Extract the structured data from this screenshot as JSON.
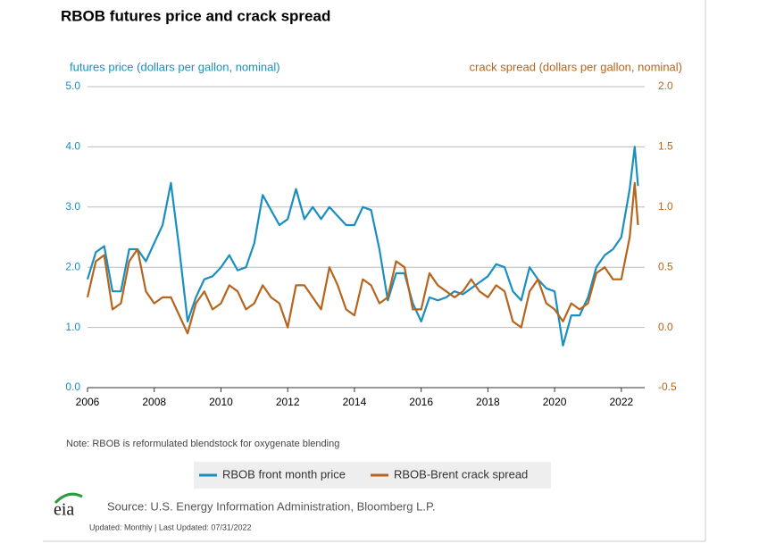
{
  "chart_data": {
    "type": "line",
    "title": "RBOB futures price and crack spread",
    "y_label": "futures price (dollars per gallon, nominal)",
    "y2_label": "crack spread (dollars per gallon, nominal)",
    "note": "Note: RBOB is reformulated blendstock for oxygenate blending",
    "source": "Source: U.S. Energy Information Administration, Bloomberg L.P.",
    "updated": "Updated: Monthly | Last Updated: 07/31/2022",
    "logo_text": "eia",
    "xlim": [
      2006,
      2022.7
    ],
    "xticks": [
      2006,
      2008,
      2010,
      2012,
      2014,
      2016,
      2018,
      2020,
      2022
    ],
    "ylim": [
      0,
      5
    ],
    "yticks": [
      {
        "value": 0,
        "label": "0.0"
      },
      {
        "value": 1,
        "label": "1.0"
      },
      {
        "value": 2,
        "label": "2.0"
      },
      {
        "value": 3,
        "label": "3.0"
      },
      {
        "value": 4,
        "label": "4.0"
      },
      {
        "value": 5,
        "label": "5.0"
      }
    ],
    "y2lim": [
      -0.5,
      2
    ],
    "y2ticks": [
      {
        "value": -0.5,
        "label": "-0.5"
      },
      {
        "value": 0,
        "label": "0.0"
      },
      {
        "value": 0.5,
        "label": "0.5"
      },
      {
        "value": 1,
        "label": "1.0"
      },
      {
        "value": 1.5,
        "label": "1.5"
      },
      {
        "value": 2,
        "label": "2.0"
      }
    ],
    "grid": true,
    "x": [
      2006,
      2006.25,
      2006.5,
      2006.75,
      2007,
      2007.25,
      2007.5,
      2007.75,
      2008,
      2008.25,
      2008.5,
      2008.75,
      2009,
      2009.25,
      2009.5,
      2009.75,
      2010,
      2010.25,
      2010.5,
      2010.75,
      2011,
      2011.25,
      2011.5,
      2011.75,
      2012,
      2012.25,
      2012.5,
      2012.75,
      2013,
      2013.25,
      2013.5,
      2013.75,
      2014,
      2014.25,
      2014.5,
      2014.75,
      2015,
      2015.25,
      2015.5,
      2015.75,
      2016,
      2016.25,
      2016.5,
      2016.75,
      2017,
      2017.25,
      2017.5,
      2017.75,
      2018,
      2018.25,
      2018.5,
      2018.75,
      2019,
      2019.25,
      2019.5,
      2019.75,
      2020,
      2020.25,
      2020.5,
      2020.75,
      2021,
      2021.25,
      2021.5,
      2021.75,
      2022,
      2022.25,
      2022.4,
      2022.5
    ],
    "series": [
      {
        "name": "RBOB front month price",
        "color": "#1a8fbf",
        "axis": "y",
        "values": [
          1.8,
          2.25,
          2.35,
          1.6,
          1.6,
          2.3,
          2.3,
          2.1,
          2.4,
          2.7,
          3.4,
          2.3,
          1.1,
          1.5,
          1.8,
          1.85,
          2.0,
          2.2,
          1.95,
          2.0,
          2.4,
          3.2,
          2.95,
          2.7,
          2.8,
          3.3,
          2.8,
          3.0,
          2.8,
          3.0,
          2.85,
          2.7,
          2.7,
          3.0,
          2.95,
          2.3,
          1.45,
          1.9,
          1.9,
          1.4,
          1.1,
          1.5,
          1.45,
          1.5,
          1.6,
          1.55,
          1.65,
          1.75,
          1.85,
          2.05,
          2.0,
          1.6,
          1.45,
          2.0,
          1.8,
          1.65,
          1.6,
          0.7,
          1.2,
          1.2,
          1.5,
          2.0,
          2.2,
          2.3,
          2.5,
          3.3,
          4.0,
          3.35
        ]
      },
      {
        "name": "RBOB-Brent crack spread",
        "color": "#b5651d",
        "axis": "y2",
        "values": [
          0.25,
          0.55,
          0.6,
          0.15,
          0.2,
          0.55,
          0.65,
          0.3,
          0.2,
          0.25,
          0.25,
          0.1,
          -0.05,
          0.2,
          0.3,
          0.15,
          0.2,
          0.35,
          0.3,
          0.15,
          0.2,
          0.35,
          0.25,
          0.2,
          0.0,
          0.35,
          0.35,
          0.25,
          0.15,
          0.5,
          0.35,
          0.15,
          0.1,
          0.4,
          0.35,
          0.2,
          0.25,
          0.55,
          0.5,
          0.15,
          0.15,
          0.45,
          0.35,
          0.3,
          0.25,
          0.3,
          0.4,
          0.3,
          0.25,
          0.35,
          0.3,
          0.05,
          0.0,
          0.3,
          0.4,
          0.2,
          0.15,
          0.05,
          0.2,
          0.15,
          0.2,
          0.45,
          0.5,
          0.4,
          0.4,
          0.75,
          1.2,
          0.85
        ]
      }
    ]
  }
}
